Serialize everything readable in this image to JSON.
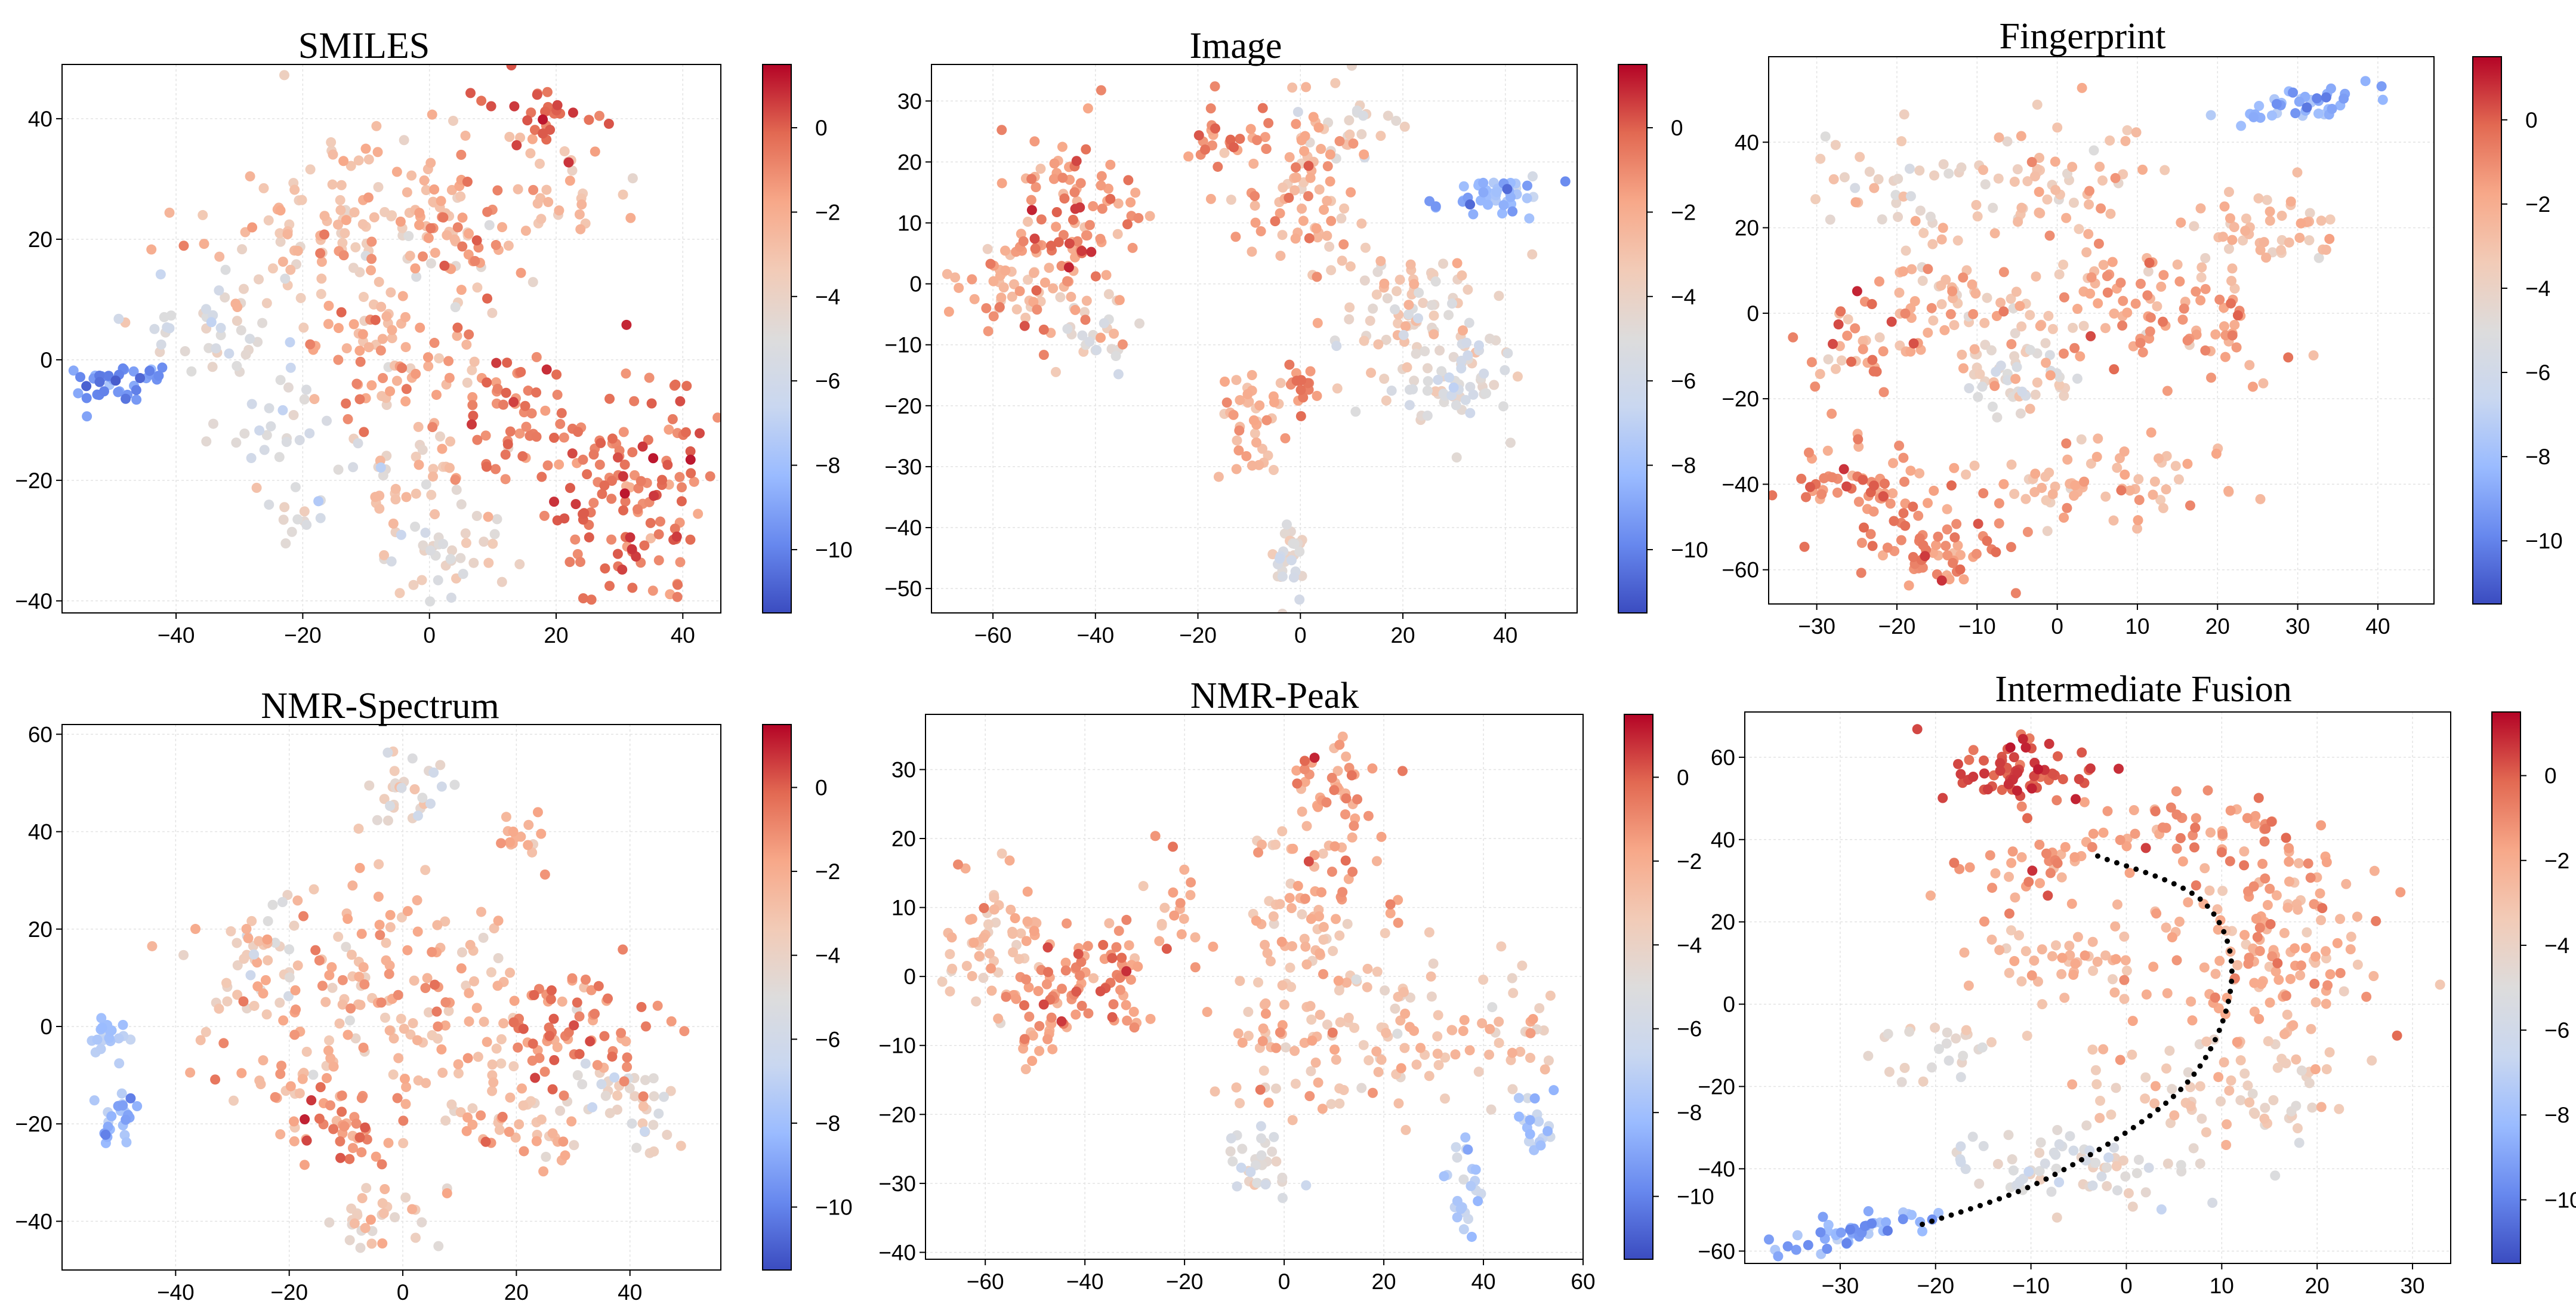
{
  "figure": {
    "colormap": {
      "name": "coolwarm",
      "stops": [
        "#3b4cc0",
        "#6788ee",
        "#9abbff",
        "#c9d7f0",
        "#dddcdc",
        "#f2cbb7",
        "#f7a889",
        "#e26952",
        "#b40426"
      ]
    },
    "grid": true
  },
  "chart_data": [
    {
      "type": "scatter",
      "title": "SMILES",
      "xlabel": "",
      "ylabel": "",
      "xlim": [
        -58,
        46
      ],
      "ylim": [
        -42,
        49
      ],
      "xticks": [
        -40,
        -20,
        0,
        20,
        40
      ],
      "yticks": [
        -40,
        -20,
        0,
        20,
        40
      ],
      "colorbar": {
        "ticks": [
          0,
          -2,
          -4,
          -6,
          -8,
          -10
        ],
        "range": [
          -11.5,
          1.5
        ]
      },
      "clusters": [
        {
          "cx": -50,
          "cy": -4,
          "sx": 4,
          "sy": 2,
          "n": 40,
          "v": -9.5,
          "vs": 1.2,
          "dx": 1,
          "dy": 0.25
        },
        {
          "cx": -35,
          "cy": 5,
          "sx": 6,
          "sy": 5,
          "n": 40,
          "v": -5,
          "vs": 1.5
        },
        {
          "cx": -22,
          "cy": -10,
          "sx": 5,
          "sy": 5,
          "n": 25,
          "v": -5.5,
          "vs": 1.5
        },
        {
          "cx": -10,
          "cy": 22,
          "sx": 12,
          "sy": 9,
          "n": 150,
          "v": -3,
          "vs": 1.5
        },
        {
          "cx": 5,
          "cy": 23,
          "sx": 6,
          "sy": 5,
          "n": 40,
          "v": -1.5,
          "vs": 1.5
        },
        {
          "cx": 20,
          "cy": 40,
          "sx": 5,
          "sy": 4,
          "n": 30,
          "v": 0.2,
          "vs": 1
        },
        {
          "cx": 20,
          "cy": 28,
          "sx": 4,
          "sy": 5,
          "n": 30,
          "v": -2.8,
          "vs": 1.2
        },
        {
          "cx": -5,
          "cy": 0,
          "sx": 7,
          "sy": 6,
          "n": 70,
          "v": -2,
          "vs": 1.5
        },
        {
          "cx": 14,
          "cy": -10,
          "sx": 4,
          "sy": 6,
          "n": 55,
          "v": -0.7,
          "vs": 1
        },
        {
          "cx": 32,
          "cy": -20,
          "sx": 6,
          "sy": 10,
          "n": 130,
          "v": -0.5,
          "vs": 1.3
        },
        {
          "cx": 2,
          "cy": -32,
          "sx": 5,
          "sy": 4,
          "n": 40,
          "v": -4.5,
          "vs": 1.5
        },
        {
          "cx": -18,
          "cy": -25,
          "sx": 5,
          "sy": 4,
          "n": 20,
          "v": -5,
          "vs": 1.5
        },
        {
          "cx": -3,
          "cy": -20,
          "sx": 6,
          "sy": 6,
          "n": 35,
          "v": -3.5,
          "vs": 1.5
        }
      ]
    },
    {
      "type": "scatter",
      "title": "Image",
      "xlabel": "",
      "ylabel": "",
      "xlim": [
        -72,
        54
      ],
      "ylim": [
        -54,
        36
      ],
      "xticks": [
        -60,
        -40,
        -20,
        0,
        20,
        40
      ],
      "yticks": [
        -50,
        -40,
        -30,
        -20,
        -10,
        0,
        10,
        20,
        30
      ],
      "colorbar": {
        "ticks": [
          0,
          -2,
          -4,
          -6,
          -8,
          -10
        ],
        "range": [
          -11.5,
          1.5
        ]
      },
      "clusters": [
        {
          "cx": -45,
          "cy": 10,
          "sx": 6,
          "sy": 9,
          "n": 110,
          "v": -1,
          "vs": 1.5
        },
        {
          "cx": -58,
          "cy": 0,
          "sx": 6,
          "sy": 4,
          "n": 40,
          "v": -2.5,
          "vs": 1.2
        },
        {
          "cx": -40,
          "cy": -8,
          "sx": 4,
          "sy": 4,
          "n": 25,
          "v": -4.5,
          "vs": 1.2
        },
        {
          "cx": -15,
          "cy": 23,
          "sx": 5,
          "sy": 3,
          "n": 25,
          "v": -1,
          "vs": 1
        },
        {
          "cx": 0,
          "cy": 15,
          "sx": 6,
          "sy": 7,
          "n": 70,
          "v": -2,
          "vs": 1.5
        },
        {
          "cx": 10,
          "cy": 25,
          "sx": 6,
          "sy": 4,
          "n": 30,
          "v": -3.5,
          "vs": 1.5
        },
        {
          "cx": 38,
          "cy": 14,
          "sx": 6,
          "sy": 1.5,
          "n": 45,
          "v": -8.5,
          "vs": 1.5,
          "dx": 1,
          "dy": 0.1
        },
        {
          "cx": 20,
          "cy": -5,
          "sx": 8,
          "sy": 7,
          "n": 80,
          "v": -3.5,
          "vs": 1.5
        },
        {
          "cx": 30,
          "cy": -15,
          "sx": 6,
          "sy": 6,
          "n": 70,
          "v": -5,
          "vs": 1.5
        },
        {
          "cx": -10,
          "cy": -22,
          "sx": 3,
          "sy": 6,
          "n": 40,
          "v": -2.5,
          "vs": 1.2
        },
        {
          "cx": 0,
          "cy": -18,
          "sx": 2,
          "sy": 3,
          "n": 15,
          "v": -0.8,
          "vs": 1
        },
        {
          "cx": -2,
          "cy": -45,
          "sx": 2,
          "sy": 4,
          "n": 30,
          "v": -5,
          "vs": 1.5
        }
      ]
    },
    {
      "type": "scatter",
      "title": "Fingerprint",
      "xlabel": "",
      "ylabel": "",
      "xlim": [
        -36,
        47
      ],
      "ylim": [
        -68,
        60
      ],
      "xticks": [
        -30,
        -20,
        -10,
        0,
        10,
        20,
        30,
        40
      ],
      "yticks": [
        -60,
        -40,
        -20,
        0,
        20,
        40
      ],
      "colorbar": {
        "ticks": [
          0,
          -2,
          -4,
          -6,
          -8,
          -10
        ],
        "range": [
          -11.5,
          1.5
        ]
      },
      "clusters": [
        {
          "cx": 30,
          "cy": 48,
          "sx": 4,
          "sy": 2,
          "n": 40,
          "v": -8.5,
          "vs": 1.5,
          "dx": 1,
          "dy": 0.4
        },
        {
          "cx": 25,
          "cy": 20,
          "sx": 5,
          "sy": 5,
          "n": 50,
          "v": -3,
          "vs": 1.5
        },
        {
          "cx": 18,
          "cy": -5,
          "sx": 5,
          "sy": 5,
          "n": 40,
          "v": -1.5,
          "vs": 1.2
        },
        {
          "cx": 0,
          "cy": 30,
          "sx": 6,
          "sy": 8,
          "n": 60,
          "v": -3,
          "vs": 1.5
        },
        {
          "cx": -10,
          "cy": 0,
          "sx": 8,
          "sy": 10,
          "n": 90,
          "v": -2.5,
          "vs": 1.5
        },
        {
          "cx": -25,
          "cy": -10,
          "sx": 4,
          "sy": 8,
          "n": 30,
          "v": -1.5,
          "vs": 1.5
        },
        {
          "cx": -25,
          "cy": -40,
          "sx": 5,
          "sy": 5,
          "n": 60,
          "v": -1,
          "vs": 1.2
        },
        {
          "cx": -15,
          "cy": -55,
          "sx": 5,
          "sy": 4,
          "n": 60,
          "v": -0.8,
          "vs": 1
        },
        {
          "cx": 5,
          "cy": -40,
          "sx": 8,
          "sy": 5,
          "n": 70,
          "v": -2.5,
          "vs": 1.5
        },
        {
          "cx": 10,
          "cy": 5,
          "sx": 6,
          "sy": 6,
          "n": 50,
          "v": -2,
          "vs": 1.5
        },
        {
          "cx": -20,
          "cy": 30,
          "sx": 6,
          "sy": 6,
          "n": 40,
          "v": -4,
          "vs": 1.5
        },
        {
          "cx": -5,
          "cy": -15,
          "sx": 4,
          "sy": 4,
          "n": 40,
          "v": -4.5,
          "vs": 1.5
        }
      ]
    },
    {
      "type": "scatter",
      "title": "NMR-Spectrum",
      "xlabel": "",
      "ylabel": "",
      "xlim": [
        -60,
        56
      ],
      "ylim": [
        -50,
        62
      ],
      "xticks": [
        -40,
        -20,
        0,
        20,
        40
      ],
      "yticks": [
        -40,
        -20,
        0,
        20,
        40,
        60
      ],
      "colorbar": {
        "ticks": [
          0,
          -2,
          -4,
          -6,
          -8,
          -10
        ],
        "range": [
          -11.5,
          1.5
        ]
      },
      "clusters": [
        {
          "cx": -52,
          "cy": -2,
          "sx": 2,
          "sy": 2,
          "n": 20,
          "v": -7.5,
          "vs": 1.2
        },
        {
          "cx": -50,
          "cy": -19,
          "sx": 2,
          "sy": 3,
          "n": 25,
          "v": -8,
          "vs": 1.5
        },
        {
          "cx": 0,
          "cy": 48,
          "sx": 4,
          "sy": 4,
          "n": 30,
          "v": -4.5,
          "vs": 1.3
        },
        {
          "cx": 20,
          "cy": 38,
          "sx": 3,
          "sy": 2,
          "n": 15,
          "v": -2.5,
          "vs": 1
        },
        {
          "cx": -5,
          "cy": 5,
          "sx": 15,
          "sy": 12,
          "n": 200,
          "v": -2.5,
          "vs": 1.5
        },
        {
          "cx": 30,
          "cy": 0,
          "sx": 8,
          "sy": 6,
          "n": 70,
          "v": -1,
          "vs": 1.3
        },
        {
          "cx": 40,
          "cy": -15,
          "sx": 5,
          "sy": 5,
          "n": 40,
          "v": -4.5,
          "vs": 1.5
        },
        {
          "cx": -10,
          "cy": -20,
          "sx": 5,
          "sy": 4,
          "n": 40,
          "v": -1,
          "vs": 1.3
        },
        {
          "cx": -5,
          "cy": -40,
          "sx": 5,
          "sy": 3,
          "n": 30,
          "v": -3.5,
          "vs": 1.5
        },
        {
          "cx": 20,
          "cy": -20,
          "sx": 6,
          "sy": 5,
          "n": 40,
          "v": -2.5,
          "vs": 1.5
        },
        {
          "cx": -25,
          "cy": 15,
          "sx": 5,
          "sy": 5,
          "n": 30,
          "v": -4,
          "vs": 1.5
        }
      ]
    },
    {
      "type": "scatter",
      "title": "NMR-Peak",
      "xlabel": "",
      "ylabel": "",
      "xlim": [
        -72,
        60
      ],
      "ylim": [
        -41,
        38
      ],
      "xticks": [
        -60,
        -40,
        -20,
        0,
        20,
        40,
        60
      ],
      "yticks": [
        -40,
        -30,
        -20,
        -10,
        0,
        10,
        20,
        30
      ],
      "colorbar": {
        "ticks": [
          0,
          -2,
          -4,
          -6,
          -8,
          -10
        ],
        "range": [
          -11.5,
          1.5
        ]
      },
      "clusters": [
        {
          "cx": -58,
          "cy": 5,
          "sx": 5,
          "sy": 5,
          "n": 60,
          "v": -2.5,
          "vs": 1.5
        },
        {
          "cx": -40,
          "cy": 0,
          "sx": 7,
          "sy": 4,
          "n": 80,
          "v": -1,
          "vs": 1.3
        },
        {
          "cx": -50,
          "cy": -8,
          "sx": 3,
          "sy": 3,
          "n": 20,
          "v": -1.5,
          "vs": 1.2
        },
        {
          "cx": -22,
          "cy": 10,
          "sx": 3,
          "sy": 5,
          "n": 20,
          "v": -2,
          "vs": 1.5
        },
        {
          "cx": 10,
          "cy": 25,
          "sx": 5,
          "sy": 6,
          "n": 50,
          "v": -1.5,
          "vs": 1.5
        },
        {
          "cx": 5,
          "cy": 8,
          "sx": 7,
          "sy": 8,
          "n": 80,
          "v": -2.5,
          "vs": 1.5
        },
        {
          "cx": 20,
          "cy": -8,
          "sx": 8,
          "sy": 6,
          "n": 70,
          "v": -3,
          "vs": 1.5
        },
        {
          "cx": 45,
          "cy": -8,
          "sx": 4,
          "sy": 4,
          "n": 30,
          "v": -3.5,
          "vs": 1.5
        },
        {
          "cx": 50,
          "cy": -22,
          "sx": 2,
          "sy": 4,
          "n": 20,
          "v": -7,
          "vs": 1.5
        },
        {
          "cx": 36,
          "cy": -30,
          "sx": 2,
          "sy": 4,
          "n": 25,
          "v": -7,
          "vs": 2
        },
        {
          "cx": -5,
          "cy": -28,
          "sx": 3,
          "sy": 3,
          "n": 30,
          "v": -4.5,
          "vs": 1.3
        },
        {
          "cx": -2,
          "cy": -10,
          "sx": 5,
          "sy": 5,
          "n": 40,
          "v": -2.5,
          "vs": 1.5
        }
      ]
    },
    {
      "type": "scatter",
      "title": "Intermediate Fusion",
      "xlabel": "",
      "ylabel": "",
      "xlim": [
        -40,
        34
      ],
      "ylim": [
        -63,
        71
      ],
      "xticks": [
        -30,
        -20,
        -10,
        0,
        10,
        20,
        30
      ],
      "yticks": [
        -60,
        -40,
        -20,
        0,
        20,
        40,
        60
      ],
      "colorbar": {
        "ticks": [
          0,
          -2,
          -4,
          -6,
          -8,
          -10
        ],
        "range": [
          -11.5,
          1.5
        ]
      },
      "clusters": [
        {
          "cx": -10,
          "cy": 57,
          "sx": 4,
          "sy": 4,
          "n": 70,
          "v": 0.2,
          "vs": 0.8
        },
        {
          "cx": 5,
          "cy": 42,
          "sx": 8,
          "sy": 4,
          "n": 60,
          "v": -1.5,
          "vs": 1.2
        },
        {
          "cx": -10,
          "cy": 32,
          "sx": 4,
          "sy": 4,
          "n": 30,
          "v": -1.5,
          "vs": 1.2
        },
        {
          "cx": -5,
          "cy": 10,
          "sx": 5,
          "sy": 5,
          "n": 50,
          "v": -2.5,
          "vs": 1.2
        },
        {
          "cx": 15,
          "cy": 15,
          "sx": 6,
          "sy": 12,
          "n": 140,
          "v": -2,
          "vs": 1.2
        },
        {
          "cx": 10,
          "cy": -20,
          "sx": 8,
          "sy": 7,
          "n": 80,
          "v": -3.5,
          "vs": 1.2
        },
        {
          "cx": -20,
          "cy": -12,
          "sx": 3,
          "sy": 4,
          "n": 25,
          "v": -4.5,
          "vs": 1.2
        },
        {
          "cx": -5,
          "cy": -40,
          "sx": 7,
          "sy": 4,
          "n": 70,
          "v": -5,
          "vs": 1.3
        },
        {
          "cx": -28,
          "cy": -55,
          "sx": 5,
          "sy": 2,
          "n": 50,
          "v": -8.5,
          "vs": 1.5,
          "dx": 1,
          "dy": 0.6
        }
      ],
      "annotation_curve": {
        "style": "dotted",
        "color": "#000000",
        "points": [
          [
            -3,
            36
          ],
          [
            8,
            25
          ],
          [
            11,
            5
          ],
          [
            6,
            -20
          ],
          [
            -8,
            -42
          ],
          [
            -22,
            -54
          ]
        ]
      }
    }
  ]
}
